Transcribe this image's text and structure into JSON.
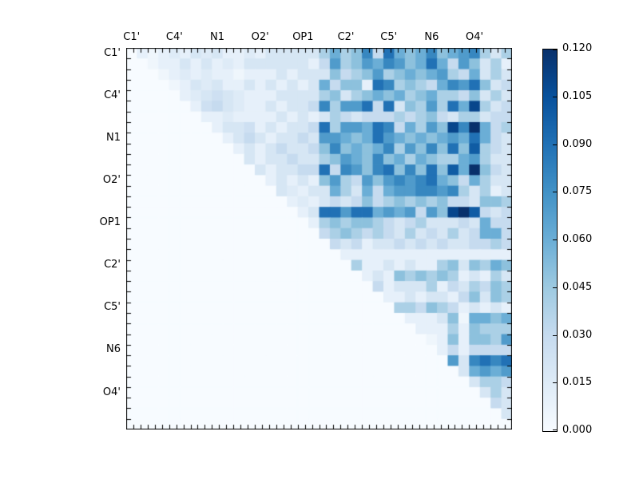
{
  "figure": {
    "background": "#ffffff",
    "title": ""
  },
  "chart_data": {
    "type": "heatmap",
    "title": "",
    "xlabel": "",
    "ylabel": "",
    "matrix_size": 36,
    "group_size": 4,
    "label_offset_cells": 0.5,
    "x_tick_labels": [
      "C1'",
      "C4'",
      "N1",
      "O2'",
      "OP1",
      "C2'",
      "C5'",
      "N6",
      "O4'"
    ],
    "y_tick_labels": [
      "C1'",
      "C4'",
      "N1",
      "O2'",
      "OP1",
      "C2'",
      "C5'",
      "N6",
      "O4'"
    ],
    "vmin": 0.0,
    "vmax": 0.12,
    "lower_triangle_value": 0.0,
    "colormap": {
      "name": "Blues",
      "stops": [
        "#f7fbff",
        "#deebf7",
        "#c6dbef",
        "#9ecae1",
        "#6baed6",
        "#4292c6",
        "#2171b5",
        "#08519c",
        "#08306b"
      ]
    },
    "grid": false,
    "tick_direction": "in",
    "rows_upper": [
      [
        0,
        0.01,
        0.005,
        0.01,
        0.015,
        0.01,
        0.02,
        0.015,
        0.02,
        0.01,
        0.01,
        0.015,
        0.01,
        0.02,
        0.02,
        0.02,
        0.02,
        0.02,
        0.04,
        0.06,
        0.04,
        0.05,
        0.08,
        0.03,
        0.09,
        0.06,
        0.05,
        0.06,
        0.08,
        0.05,
        0.06,
        0.07,
        0.08,
        0.04,
        0.02,
        0.04
      ],
      [
        0,
        0.005,
        0.01,
        0.01,
        0.02,
        0.01,
        0.02,
        0.01,
        0.015,
        0.01,
        0.02,
        0.02,
        0.02,
        0.02,
        0.02,
        0.02,
        0.01,
        0.03,
        0.07,
        0.04,
        0.05,
        0.07,
        0.06,
        0.08,
        0.07,
        0.05,
        0.06,
        0.09,
        0.06,
        0.03,
        0.07,
        0.05,
        0.02,
        0.04,
        0.01
      ],
      [
        0,
        0.005,
        0.01,
        0.015,
        0.01,
        0.015,
        0.01,
        0.01,
        0.005,
        0.01,
        0.01,
        0.01,
        0.02,
        0.01,
        0.02,
        0.02,
        0.02,
        0.05,
        0.03,
        0.04,
        0.05,
        0.07,
        0.04,
        0.05,
        0.06,
        0.05,
        0.06,
        0.07,
        0.04,
        0.03,
        0.06,
        0.02,
        0.04,
        0.02
      ],
      [
        0,
        0.005,
        0.01,
        0.02,
        0.015,
        0.02,
        0.01,
        0.01,
        0.02,
        0.01,
        0.02,
        0.01,
        0.02,
        0.01,
        0.02,
        0.06,
        0.03,
        0.05,
        0.05,
        0.01,
        0.09,
        0.08,
        0.04,
        0.05,
        0.04,
        0.03,
        0.06,
        0.08,
        0.07,
        0.09,
        0.05,
        0.02,
        0.03
      ],
      [
        0,
        0.01,
        0.015,
        0.02,
        0.025,
        0.02,
        0.015,
        0.01,
        0.01,
        0.01,
        0.02,
        0.02,
        0.02,
        0.02,
        0.04,
        0.05,
        0.02,
        0.04,
        0.05,
        0.06,
        0.05,
        0.06,
        0.04,
        0.05,
        0.06,
        0.04,
        0.04,
        0.03,
        0.05,
        0.02,
        0.04,
        0.02
      ],
      [
        0,
        0.01,
        0.025,
        0.03,
        0.02,
        0.015,
        0.01,
        0.01,
        0.02,
        0.01,
        0.02,
        0.02,
        0.03,
        0.08,
        0.04,
        0.07,
        0.07,
        0.09,
        0.03,
        0.09,
        0.02,
        0.05,
        0.04,
        0.07,
        0.04,
        0.09,
        0.06,
        0.11,
        0.04,
        0.02,
        0.03
      ],
      [
        0,
        0.01,
        0.01,
        0.015,
        0.01,
        0.01,
        0.01,
        0.01,
        0.02,
        0.01,
        0.02,
        0.01,
        0.02,
        0.04,
        0.03,
        0.02,
        0.03,
        0.03,
        0.03,
        0.04,
        0.03,
        0.04,
        0.05,
        0.03,
        0.02,
        0.04,
        0.04,
        0.02,
        0.03,
        0.03
      ],
      [
        0,
        0.01,
        0.02,
        0.02,
        0.025,
        0.01,
        0.02,
        0.01,
        0.02,
        0.02,
        0.03,
        0.09,
        0.04,
        0.07,
        0.07,
        0.06,
        0.09,
        0.08,
        0.03,
        0.06,
        0.04,
        0.07,
        0.05,
        0.11,
        0.08,
        0.12,
        0.06,
        0.03,
        0.04
      ],
      [
        0,
        0.01,
        0.02,
        0.03,
        0.02,
        0.01,
        0.02,
        0.02,
        0.03,
        0.02,
        0.07,
        0.07,
        0.06,
        0.05,
        0.06,
        0.09,
        0.07,
        0.06,
        0.05,
        0.06,
        0.05,
        0.06,
        0.07,
        0.06,
        0.09,
        0.06,
        0.03,
        0.02
      ],
      [
        0,
        0.01,
        0.02,
        0.01,
        0.02,
        0.03,
        0.02,
        0.02,
        0.03,
        0.05,
        0.08,
        0.05,
        0.06,
        0.05,
        0.06,
        0.08,
        0.04,
        0.07,
        0.05,
        0.08,
        0.05,
        0.09,
        0.05,
        0.1,
        0.04,
        0.03,
        0.02
      ],
      [
        0,
        0.02,
        0.01,
        0.02,
        0.02,
        0.03,
        0.02,
        0.02,
        0.04,
        0.05,
        0.07,
        0.06,
        0.05,
        0.08,
        0.05,
        0.06,
        0.04,
        0.06,
        0.05,
        0.04,
        0.04,
        0.06,
        0.07,
        0.04,
        0.02,
        0.02
      ],
      [
        0,
        0.02,
        0.01,
        0.02,
        0.02,
        0.03,
        0.03,
        0.09,
        0.03,
        0.08,
        0.07,
        0.05,
        0.08,
        0.09,
        0.05,
        0.08,
        0.05,
        0.09,
        0.05,
        0.1,
        0.06,
        0.12,
        0.05,
        0.03,
        0.02
      ],
      [
        0,
        0.01,
        0.02,
        0.01,
        0.02,
        0.01,
        0.05,
        0.07,
        0.04,
        0.03,
        0.07,
        0.05,
        0.07,
        0.08,
        0.07,
        0.08,
        0.09,
        0.06,
        0.05,
        0.03,
        0.06,
        0.04,
        0.02,
        0.02
      ],
      [
        0,
        0.02,
        0.015,
        0.01,
        0.02,
        0.02,
        0.06,
        0.04,
        0.02,
        0.06,
        0.03,
        0.06,
        0.07,
        0.07,
        0.08,
        0.08,
        0.07,
        0.08,
        0.04,
        0.02,
        0.04,
        0.01,
        0.02
      ],
      [
        0,
        0.01,
        0.015,
        0.01,
        0.02,
        0.03,
        0.02,
        0.03,
        0.05,
        0.03,
        0.04,
        0.05,
        0.04,
        0.05,
        0.04,
        0.05,
        0.03,
        0.03,
        0.02,
        0.05,
        0.05,
        0.04
      ],
      [
        0,
        0.01,
        0.02,
        0.09,
        0.09,
        0.07,
        0.09,
        0.09,
        0.06,
        0.07,
        0.06,
        0.07,
        0.03,
        0.07,
        0.05,
        0.11,
        0.12,
        0.1,
        0.03,
        0.02,
        0.03
      ],
      [
        0,
        0.01,
        0.04,
        0.05,
        0.04,
        0.05,
        0.05,
        0.04,
        0.03,
        0.02,
        0.03,
        0.04,
        0.02,
        0.02,
        0.02,
        0.03,
        0.02,
        0.06,
        0.03,
        0.03
      ],
      [
        0,
        0.03,
        0.04,
        0.05,
        0.04,
        0.03,
        0.04,
        0.03,
        0.02,
        0.04,
        0.02,
        0.03,
        0.02,
        0.04,
        0.02,
        0.03,
        0.06,
        0.06,
        0.03
      ],
      [
        0,
        0.03,
        0.02,
        0.03,
        0.01,
        0.02,
        0.02,
        0.03,
        0.02,
        0.03,
        0.02,
        0.03,
        0.02,
        0.02,
        0.03,
        0.03,
        0.04,
        0.03
      ],
      [
        0,
        0.01,
        0.01,
        0.01,
        0.01,
        0.01,
        0.01,
        0.01,
        0.01,
        0.01,
        0.01,
        0.01,
        0.01,
        0.01,
        0.01,
        0.01,
        0.01
      ],
      [
        0,
        0.04,
        0.01,
        0.01,
        0.02,
        0.01,
        0.02,
        0.01,
        0.01,
        0.04,
        0.05,
        0.02,
        0.05,
        0.04,
        0.06,
        0.05
      ],
      [
        0,
        0.01,
        0.02,
        0.01,
        0.05,
        0.04,
        0.05,
        0.04,
        0.05,
        0.04,
        0.01,
        0.02,
        0.01,
        0.04,
        0.02
      ],
      [
        0,
        0.03,
        0.01,
        0.02,
        0.02,
        0.02,
        0.04,
        0.01,
        0.03,
        0.02,
        0.04,
        0.03,
        0.05,
        0.04
      ],
      [
        0,
        0.01,
        0.01,
        0.02,
        0.01,
        0.02,
        0.02,
        0.01,
        0.03,
        0.05,
        0.02,
        0.05,
        0.04
      ],
      [
        0,
        0.04,
        0.04,
        0.03,
        0.05,
        0.04,
        0.03,
        0.01,
        0.02,
        0.01,
        0.02,
        0.01
      ],
      [
        0,
        0.01,
        0.01,
        0.01,
        0.02,
        0.05,
        0.005,
        0.06,
        0.06,
        0.05,
        0.06
      ],
      [
        0,
        0.01,
        0.01,
        0.01,
        0.04,
        0.01,
        0.05,
        0.04,
        0.04,
        0.04
      ],
      [
        0,
        0.005,
        0.01,
        0.05,
        0.01,
        0.05,
        0.05,
        0.04,
        0.07
      ],
      [
        0,
        0.01,
        0.03,
        0.01,
        0.03,
        0.03,
        0.03,
        0.03
      ],
      [
        0,
        0.07,
        0.02,
        0.08,
        0.09,
        0.08,
        0.09
      ],
      [
        0,
        0.02,
        0.06,
        0.07,
        0.06,
        0.07
      ],
      [
        0,
        0.02,
        0.04,
        0.04,
        0.03
      ],
      [
        0,
        0.02,
        0.04,
        0.02
      ],
      [
        0,
        0.03,
        0.02
      ],
      [
        0,
        0.02
      ],
      [
        0
      ]
    ],
    "colorbar": {
      "tick_labels": [
        "0.000",
        "0.015",
        "0.030",
        "0.045",
        "0.060",
        "0.075",
        "0.090",
        "0.105",
        "0.120"
      ],
      "orientation": "vertical",
      "position": "right"
    }
  }
}
